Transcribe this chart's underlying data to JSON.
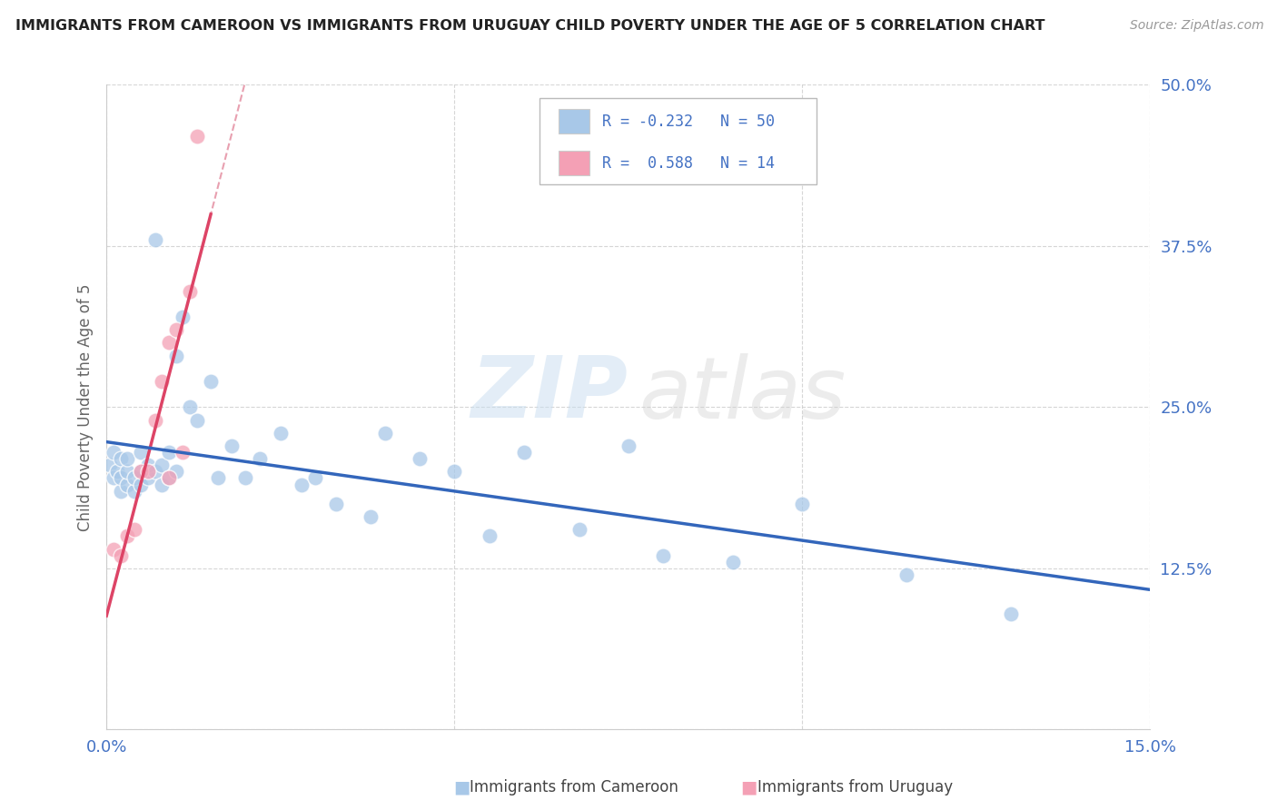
{
  "title": "IMMIGRANTS FROM CAMEROON VS IMMIGRANTS FROM URUGUAY CHILD POVERTY UNDER THE AGE OF 5 CORRELATION CHART",
  "source": "Source: ZipAtlas.com",
  "ylabel": "Child Poverty Under the Age of 5",
  "xlim": [
    0.0,
    0.15
  ],
  "ylim": [
    0.0,
    0.5
  ],
  "cameroon_R": -0.232,
  "cameroon_N": 50,
  "uruguay_R": 0.588,
  "uruguay_N": 14,
  "cameroon_color": "#a8c8e8",
  "uruguay_color": "#f4a0b5",
  "cameroon_line_color": "#3366bb",
  "uruguay_line_color": "#dd4466",
  "dashed_color": "#e8a0b0",
  "background_color": "#ffffff",
  "grid_color": "#cccccc",
  "axis_color": "#4472c4",
  "cam_x": [
    0.0005,
    0.001,
    0.001,
    0.0015,
    0.002,
    0.002,
    0.002,
    0.003,
    0.003,
    0.003,
    0.004,
    0.004,
    0.005,
    0.005,
    0.005,
    0.006,
    0.006,
    0.007,
    0.007,
    0.008,
    0.008,
    0.009,
    0.009,
    0.01,
    0.01,
    0.011,
    0.012,
    0.013,
    0.015,
    0.016,
    0.018,
    0.02,
    0.022,
    0.025,
    0.028,
    0.03,
    0.033,
    0.038,
    0.04,
    0.045,
    0.05,
    0.055,
    0.06,
    0.068,
    0.075,
    0.08,
    0.09,
    0.1,
    0.115,
    0.13
  ],
  "cam_y": [
    0.205,
    0.195,
    0.215,
    0.2,
    0.185,
    0.195,
    0.21,
    0.19,
    0.2,
    0.21,
    0.185,
    0.195,
    0.2,
    0.19,
    0.215,
    0.195,
    0.205,
    0.38,
    0.2,
    0.205,
    0.19,
    0.215,
    0.195,
    0.29,
    0.2,
    0.32,
    0.25,
    0.24,
    0.27,
    0.195,
    0.22,
    0.195,
    0.21,
    0.23,
    0.19,
    0.195,
    0.175,
    0.165,
    0.23,
    0.21,
    0.2,
    0.15,
    0.215,
    0.155,
    0.22,
    0.135,
    0.13,
    0.175,
    0.12,
    0.09
  ],
  "uru_x": [
    0.001,
    0.002,
    0.003,
    0.004,
    0.005,
    0.006,
    0.007,
    0.008,
    0.009,
    0.009,
    0.01,
    0.011,
    0.012,
    0.013
  ],
  "uru_y": [
    0.14,
    0.135,
    0.15,
    0.155,
    0.2,
    0.2,
    0.24,
    0.27,
    0.3,
    0.195,
    0.31,
    0.215,
    0.34,
    0.46
  ]
}
